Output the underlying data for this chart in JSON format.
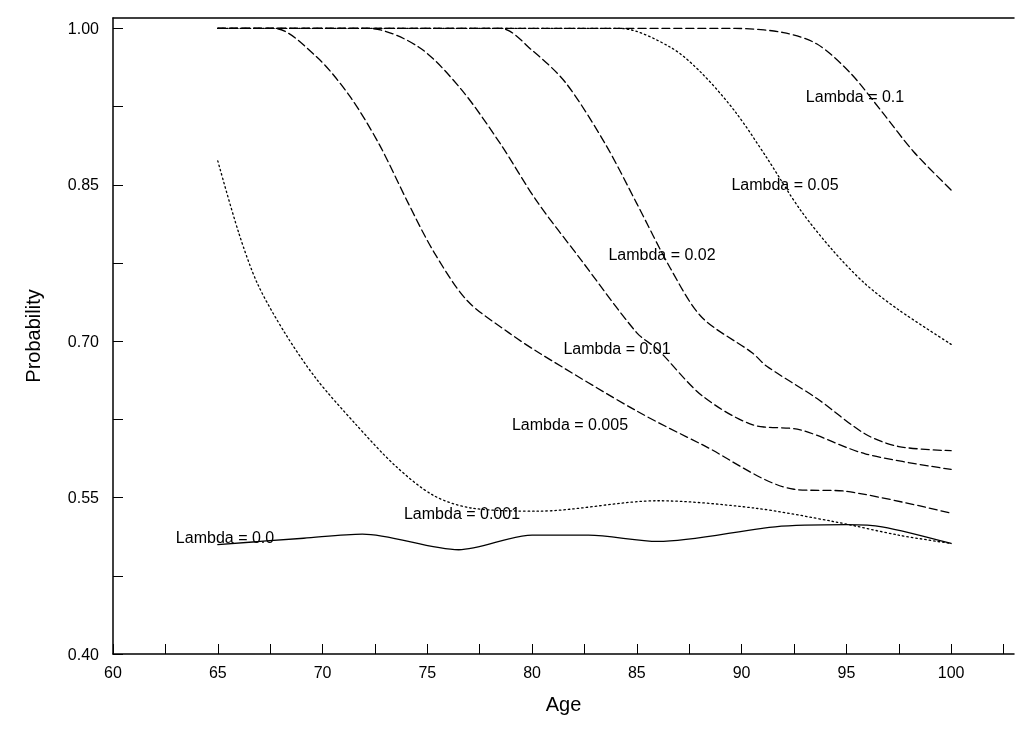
{
  "chart_data": {
    "type": "line",
    "xlabel": "Age",
    "ylabel": "Probability",
    "xlim": [
      60,
      103
    ],
    "ylim": [
      0.4,
      1.01
    ],
    "xticks": [
      60,
      {
        "value": 62.5,
        "label": null
      },
      65,
      {
        "value": 67.5,
        "label": null
      },
      70,
      {
        "value": 72.5,
        "label": null
      },
      75,
      {
        "value": 77.5,
        "label": null
      },
      80,
      {
        "value": 82.5,
        "label": null
      },
      85,
      {
        "value": 87.5,
        "label": null
      },
      90,
      {
        "value": 92.5,
        "label": null
      },
      95,
      {
        "value": 97.5,
        "label": null
      },
      100,
      {
        "value": 102.5,
        "label": null
      }
    ],
    "yticks": [
      {
        "value": 0.4,
        "label": "0.40"
      },
      {
        "value": 0.475,
        "label": null
      },
      {
        "value": 0.55,
        "label": "0.55"
      },
      {
        "value": 0.625,
        "label": null
      },
      {
        "value": 0.7,
        "label": "0.70"
      },
      {
        "value": 0.775,
        "label": null
      },
      {
        "value": 0.85,
        "label": "0.85"
      },
      {
        "value": 0.925,
        "label": null
      },
      {
        "value": 1.0,
        "label": "1.00"
      }
    ],
    "grid": false,
    "marker": "none",
    "series": [
      {
        "color": "#000000",
        "line_style": "solid",
        "x": [
          65,
          69.1,
          71.9,
          76.5,
          80,
          82.7,
          86,
          91.6,
          95,
          96.7,
          100
        ],
        "values": [
          0.505,
          0.511,
          0.515,
          0.5,
          0.514,
          0.514,
          0.508,
          0.522,
          0.524,
          0.522,
          0.506
        ]
      },
      {
        "color": "#000000",
        "line_style": "dotted",
        "x": [
          65,
          66,
          66.9,
          68.2,
          69.7,
          71.6,
          73.5,
          75.3,
          77.1,
          80.3,
          86,
          90.6,
          94.4,
          97.5,
          100
        ],
        "values": [
          0.873,
          0.804,
          0.755,
          0.708,
          0.664,
          0.62,
          0.58,
          0.552,
          0.54,
          0.537,
          0.547,
          0.54,
          0.527,
          0.514,
          0.506
        ]
      },
      {
        "color": "#000000",
        "line_style": "dashed",
        "x": [
          65,
          67.7,
          69.7,
          71.3,
          72.7,
          74.1,
          75.3,
          76.9,
          78.9,
          80.4,
          85,
          88.1,
          92.5,
          95,
          100
        ],
        "values": [
          1.0,
          1.0,
          0.973,
          0.935,
          0.889,
          0.832,
          0.786,
          0.739,
          0.708,
          0.688,
          0.633,
          0.601,
          0.558,
          0.556,
          0.535
        ]
      },
      {
        "color": "#000000",
        "line_style": "dashed",
        "x": [
          65,
          72.2,
          74.6,
          76.6,
          78.5,
          80.2,
          82.3,
          85,
          86,
          88.1,
          90.5,
          92.8,
          95.9,
          100
        ],
        "values": [
          1.0,
          1.0,
          0.982,
          0.942,
          0.889,
          0.835,
          0.779,
          0.708,
          0.692,
          0.648,
          0.62,
          0.615,
          0.592,
          0.577
        ]
      },
      {
        "color": "#000000",
        "line_style": "dashed",
        "x": [
          65,
          78.5,
          80,
          81.6,
          83.5,
          85,
          86.6,
          88.1,
          90.5,
          91.2,
          93.6,
          95.9,
          97.5,
          100
        ],
        "values": [
          1.0,
          1.0,
          0.979,
          0.948,
          0.889,
          0.832,
          0.77,
          0.723,
          0.689,
          0.676,
          0.645,
          0.611,
          0.599,
          0.595
        ]
      },
      {
        "color": "#000000",
        "line_style": "dotted",
        "x": [
          65,
          84.2,
          86.6,
          88.1,
          89.7,
          91.2,
          92.8,
          94.4,
          95.9,
          97.5,
          100
        ],
        "values": [
          1.0,
          1.0,
          0.982,
          0.957,
          0.92,
          0.876,
          0.826,
          0.786,
          0.755,
          0.73,
          0.697
        ]
      },
      {
        "color": "#000000",
        "line_style": "dashed",
        "x": [
          65,
          89.7,
          92,
          93.6,
          95.2,
          96.7,
          98.2,
          100
        ],
        "values": [
          1.0,
          1.0,
          0.996,
          0.985,
          0.957,
          0.92,
          0.882,
          0.845
        ]
      }
    ],
    "annotations": [
      "Lambda = 0.1",
      "Lambda = 0.05",
      "Lambda = 0.02",
      "Lambda = 0.01",
      "Lambda = 0.005",
      "Lambda = 0.001",
      "Lambda = 0.0"
    ]
  }
}
